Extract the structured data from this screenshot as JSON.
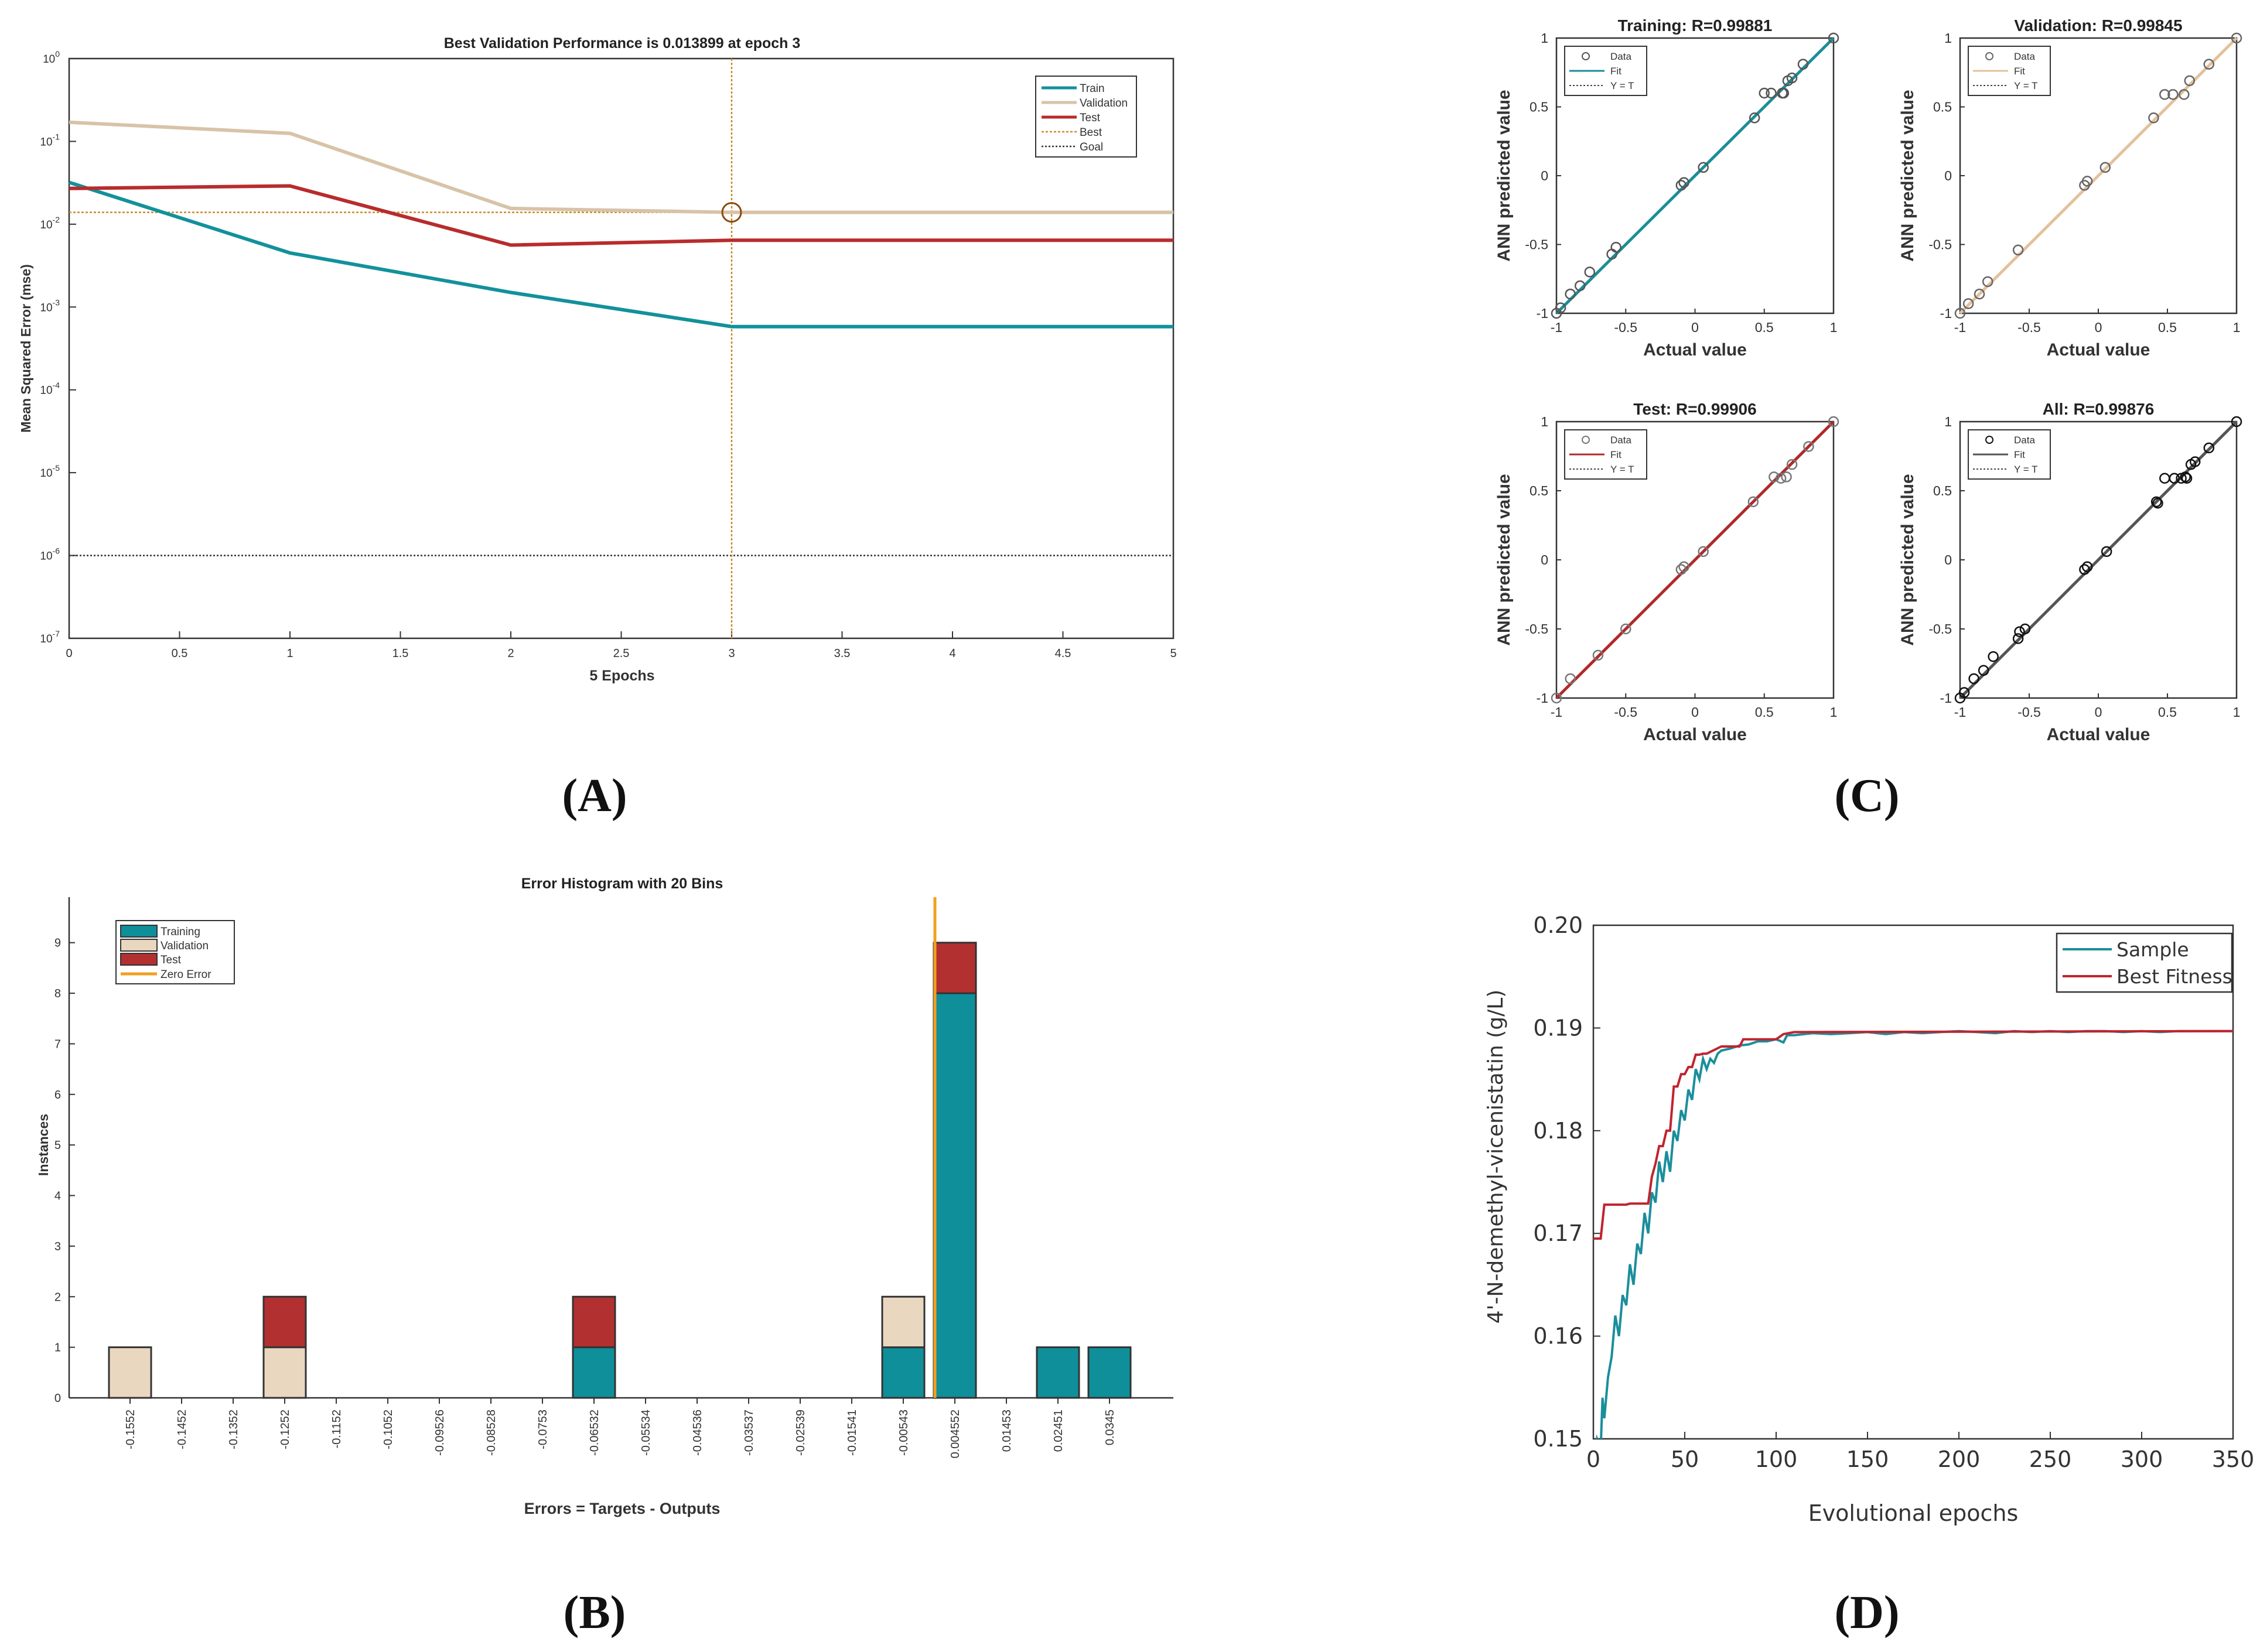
{
  "panel_labels": {
    "A": "(A)",
    "B": "(B)",
    "C": "(C)",
    "D": "(D)"
  },
  "chart_data": [
    {
      "id": "A",
      "type": "line",
      "title": "Best Validation Performance is 0.013899 at epoch 3",
      "xlabel": "5 Epochs",
      "ylabel": "Mean Squared Error  (mse)",
      "yscale": "log",
      "xlim": [
        0,
        5
      ],
      "ylim": [
        1e-07,
        1
      ],
      "x_ticks": [
        "0",
        "0.5",
        "1",
        "1.5",
        "2",
        "2.5",
        "3",
        "3.5",
        "4",
        "4.5",
        "5"
      ],
      "y_ticks": [
        "10",
        "10",
        "10",
        "10",
        "10",
        "10",
        "10",
        "10"
      ],
      "y_tick_exponents": [
        "-7",
        "-6",
        "-5",
        "-4",
        "-3",
        "-2",
        "-1",
        "0"
      ],
      "legend_position": "top-right",
      "series": [
        {
          "name": "Train",
          "color": "#12919b",
          "x": [
            0,
            1,
            2,
            3,
            4,
            5
          ],
          "y": [
            0.032,
            0.0045,
            0.0015,
            0.00058,
            0.00058,
            0.00058
          ]
        },
        {
          "name": "Validation",
          "color": "#d8c3a8",
          "x": [
            0,
            1,
            2,
            3,
            4,
            5
          ],
          "y": [
            0.17,
            0.125,
            0.0155,
            0.0139,
            0.0139,
            0.0139
          ]
        },
        {
          "name": "Test",
          "color": "#b82c2c",
          "x": [
            0,
            1,
            2,
            3,
            4,
            5
          ],
          "y": [
            0.027,
            0.029,
            0.0056,
            0.0064,
            0.0064,
            0.0064
          ]
        }
      ],
      "best": {
        "name": "Best",
        "epoch": 3,
        "value": 0.013899,
        "color": "#cc8a2a"
      },
      "goal": {
        "name": "Goal",
        "value": 1e-06,
        "color": "#333333"
      }
    },
    {
      "id": "B",
      "type": "bar",
      "title": "Error Histogram with 20 Bins",
      "xlabel": "Errors = Targets - Outputs",
      "ylabel": "Instances",
      "ylim": [
        0,
        9.9
      ],
      "y_ticks": [
        "0",
        "1",
        "2",
        "3",
        "4",
        "5",
        "6",
        "7",
        "8",
        "9"
      ],
      "categories": [
        "-0.1552",
        "-0.1452",
        "-0.1352",
        "-0.1252",
        "-0.1152",
        "-0.1052",
        "-0.09526",
        "-0.08528",
        "-0.0753",
        "-0.06532",
        "-0.05534",
        "-0.04536",
        "-0.03537",
        "-0.02539",
        "-0.01541",
        "-0.00543",
        "0.004552",
        "0.01453",
        "0.02451",
        "0.0345"
      ],
      "legend_position": "top-left",
      "series": [
        {
          "name": "Training",
          "color": "#0f8f9a",
          "values": [
            0,
            0,
            0,
            0,
            0,
            0,
            0,
            0,
            0,
            1,
            0,
            0,
            0,
            0,
            0,
            1,
            8,
            0,
            1,
            1
          ]
        },
        {
          "name": "Validation",
          "color": "#ead7c0",
          "values": [
            1,
            0,
            0,
            1,
            0,
            0,
            0,
            0,
            0,
            0,
            0,
            0,
            0,
            0,
            0,
            1,
            0,
            0,
            0,
            0
          ]
        },
        {
          "name": "Test",
          "color": "#b33030",
          "values": [
            0,
            0,
            0,
            1,
            0,
            0,
            0,
            0,
            0,
            1,
            0,
            0,
            0,
            0,
            0,
            0,
            1,
            0,
            0,
            0
          ]
        }
      ],
      "zero_error": {
        "name": "Zero Error",
        "position_between": [
          15,
          16
        ],
        "color": "#f0a020"
      }
    },
    {
      "id": "C",
      "type": "scatter",
      "xlabel": "Actual value",
      "ylabel": "ANN predicted value",
      "xlim": [
        -1,
        1
      ],
      "ylim": [
        -1,
        1
      ],
      "x_ticks": [
        "-1",
        "-0.5",
        "0",
        "0.5",
        "1"
      ],
      "y_ticks": [
        "-1",
        "-0.5",
        "0",
        "0.5",
        "1"
      ],
      "legend_labels": [
        "Data",
        "Fit",
        "Y = T"
      ],
      "subplots": [
        {
          "title": "Training: R=0.99881",
          "fit_color": "#1a8e98",
          "marker_color": "#555",
          "points": [
            [
              -1,
              -1
            ],
            [
              -0.97,
              -0.96
            ],
            [
              -0.9,
              -0.86
            ],
            [
              -0.83,
              -0.8
            ],
            [
              -0.76,
              -0.7
            ],
            [
              -0.6,
              -0.57
            ],
            [
              -0.57,
              -0.52
            ],
            [
              -0.1,
              -0.07
            ],
            [
              -0.08,
              -0.05
            ],
            [
              0.06,
              0.06
            ],
            [
              0.43,
              0.42
            ],
            [
              0.5,
              0.6
            ],
            [
              0.55,
              0.6
            ],
            [
              0.63,
              0.6
            ],
            [
              0.64,
              0.6
            ],
            [
              0.67,
              0.69
            ],
            [
              0.7,
              0.71
            ],
            [
              0.78,
              0.81
            ],
            [
              1,
              1
            ]
          ]
        },
        {
          "title": "Validation: R=0.99845",
          "fit_color": "#e3c19b",
          "marker_color": "#666",
          "points": [
            [
              -1,
              -1
            ],
            [
              -0.94,
              -0.93
            ],
            [
              -0.86,
              -0.86
            ],
            [
              -0.8,
              -0.77
            ],
            [
              -0.58,
              -0.54
            ],
            [
              -0.1,
              -0.07
            ],
            [
              -0.08,
              -0.04
            ],
            [
              0.05,
              0.06
            ],
            [
              0.4,
              0.42
            ],
            [
              0.48,
              0.59
            ],
            [
              0.54,
              0.59
            ],
            [
              0.62,
              0.59
            ],
            [
              0.66,
              0.69
            ],
            [
              0.8,
              0.81
            ],
            [
              1,
              1
            ]
          ]
        },
        {
          "title": "Test: R=0.99906",
          "fit_color": "#b02a2a",
          "marker_color": "#777",
          "points": [
            [
              -1,
              -1
            ],
            [
              -0.9,
              -0.86
            ],
            [
              -0.7,
              -0.69
            ],
            [
              -0.5,
              -0.5
            ],
            [
              -0.1,
              -0.07
            ],
            [
              -0.08,
              -0.05
            ],
            [
              0.06,
              0.06
            ],
            [
              0.42,
              0.42
            ],
            [
              0.57,
              0.6
            ],
            [
              0.62,
              0.59
            ],
            [
              0.66,
              0.6
            ],
            [
              0.7,
              0.69
            ],
            [
              0.82,
              0.82
            ],
            [
              1,
              1
            ]
          ]
        },
        {
          "title": "All: R=0.99876",
          "fit_color": "#555555",
          "marker_color": "#111",
          "points": [
            [
              -1,
              -1
            ],
            [
              -0.97,
              -0.96
            ],
            [
              -0.9,
              -0.86
            ],
            [
              -0.83,
              -0.8
            ],
            [
              -0.76,
              -0.7
            ],
            [
              -0.58,
              -0.57
            ],
            [
              -0.57,
              -0.52
            ],
            [
              -0.53,
              -0.5
            ],
            [
              -0.1,
              -0.07
            ],
            [
              -0.08,
              -0.05
            ],
            [
              0.06,
              0.06
            ],
            [
              0.42,
              0.42
            ],
            [
              0.43,
              0.41
            ],
            [
              0.48,
              0.59
            ],
            [
              0.55,
              0.59
            ],
            [
              0.6,
              0.59
            ],
            [
              0.63,
              0.6
            ],
            [
              0.64,
              0.59
            ],
            [
              0.67,
              0.69
            ],
            [
              0.7,
              0.71
            ],
            [
              0.8,
              0.81
            ],
            [
              1,
              1
            ]
          ]
        }
      ]
    },
    {
      "id": "D",
      "type": "line",
      "xlabel": "Evolutional epochs",
      "ylabel": "4'-N-demethyl-vicenistatin (g/L)",
      "xlim": [
        0,
        350
      ],
      "ylim": [
        0.15,
        0.2
      ],
      "x_ticks": [
        "0",
        "50",
        "100",
        "150",
        "200",
        "250",
        "300",
        "350"
      ],
      "y_ticks": [
        "0.15",
        "0.16",
        "0.17",
        "0.18",
        "0.19",
        "0.20"
      ],
      "legend_position": "top-right",
      "series": [
        {
          "name": "Sample",
          "color": "#1a8e9c",
          "x": [
            0,
            2,
            4,
            5,
            6,
            8,
            10,
            12,
            14,
            16,
            18,
            20,
            22,
            24,
            26,
            28,
            30,
            32,
            34,
            36,
            38,
            40,
            42,
            44,
            46,
            48,
            50,
            52,
            54,
            56,
            58,
            60,
            62,
            64,
            66,
            68,
            70,
            75,
            80,
            85,
            90,
            95,
            100,
            104,
            106,
            110,
            120,
            130,
            140,
            150,
            160,
            170,
            180,
            190,
            200,
            210,
            220,
            230,
            240,
            250,
            260,
            270,
            280,
            290,
            300,
            310,
            320,
            330,
            340,
            350
          ],
          "y": [
            0.148,
            0.15,
            0.149,
            0.154,
            0.152,
            0.156,
            0.158,
            0.162,
            0.16,
            0.164,
            0.163,
            0.167,
            0.165,
            0.169,
            0.168,
            0.172,
            0.17,
            0.174,
            0.173,
            0.177,
            0.175,
            0.178,
            0.176,
            0.18,
            0.179,
            0.182,
            0.181,
            0.184,
            0.183,
            0.186,
            0.185,
            0.187,
            0.186,
            0.187,
            0.1866,
            0.1875,
            0.1878,
            0.188,
            0.1883,
            0.1884,
            0.1887,
            0.1887,
            0.1889,
            0.1886,
            0.1893,
            0.1893,
            0.1895,
            0.1894,
            0.1895,
            0.1896,
            0.1894,
            0.1896,
            0.1895,
            0.1896,
            0.1897,
            0.1896,
            0.1895,
            0.1897,
            0.1896,
            0.1897,
            0.1896,
            0.1897,
            0.1897,
            0.1896,
            0.1897,
            0.1896,
            0.1897,
            0.1897,
            0.1897,
            0.1897
          ]
        },
        {
          "name": "Best Fitness",
          "color": "#c0242e",
          "x": [
            0,
            4,
            6,
            18,
            20,
            30,
            32,
            34,
            36,
            38,
            40,
            42,
            44,
            46,
            48,
            50,
            52,
            54,
            56,
            58,
            60,
            62,
            70,
            80,
            82,
            100,
            104,
            110,
            350
          ],
          "y": [
            0.1695,
            0.1695,
            0.1728,
            0.1728,
            0.1729,
            0.1729,
            0.1755,
            0.1768,
            0.1785,
            0.1785,
            0.18,
            0.18,
            0.1843,
            0.1843,
            0.1855,
            0.1855,
            0.1862,
            0.1862,
            0.1874,
            0.1874,
            0.1875,
            0.1875,
            0.1882,
            0.1882,
            0.1889,
            0.1889,
            0.1894,
            0.1896,
            0.1897
          ]
        }
      ]
    }
  ]
}
